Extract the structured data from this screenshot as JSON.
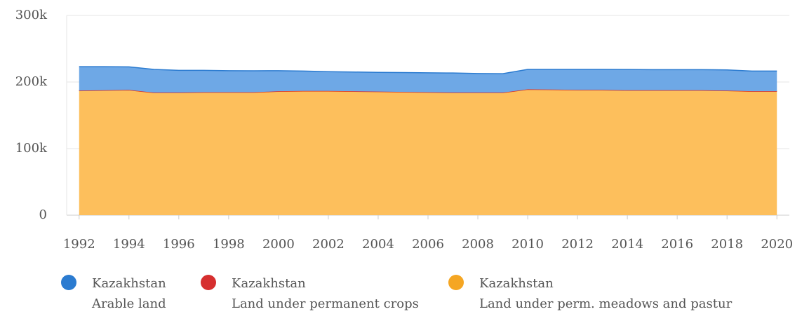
{
  "chart_data": {
    "type": "stacked_area",
    "x": [
      1992,
      1993,
      1994,
      1995,
      1996,
      1997,
      1998,
      1999,
      2000,
      2001,
      2002,
      2003,
      2004,
      2005,
      2006,
      2007,
      2008,
      2009,
      2010,
      2011,
      2012,
      2013,
      2014,
      2015,
      2016,
      2017,
      2018,
      2019,
      2020
    ],
    "xlim": [
      1991.5,
      2020.5
    ],
    "xticks": [
      1992,
      1994,
      1996,
      1998,
      2000,
      2002,
      2004,
      2006,
      2008,
      2010,
      2012,
      2014,
      2016,
      2018,
      2020
    ],
    "ylim": [
      0,
      300000
    ],
    "yticks": [
      0,
      {
        "value": 100000,
        "label": "100k"
      },
      {
        "value": 200000,
        "label": "200k"
      },
      {
        "value": 300000,
        "label": "300k"
      }
    ],
    "grid": true,
    "legend": "bottom",
    "series": [
      {
        "name": "Kazakhstan",
        "element": "Arable land",
        "color": "#2b7bd0",
        "fill": "#6ea8e6",
        "values": [
          35880,
          35380,
          34680,
          34880,
          33380,
          32880,
          32380,
          32180,
          30880,
          29880,
          28880,
          28880,
          28880,
          29080,
          29180,
          29380,
          28680,
          28380,
          29880,
          30380,
          30880,
          30880,
          31180,
          30880,
          30880,
          30880,
          31080,
          30380,
          30380
        ]
      },
      {
        "name": "Kazakhstan",
        "element": "Land under permanent crops",
        "color": "#d62f2f",
        "fill": "#e06060",
        "values": [
          120,
          120,
          120,
          120,
          120,
          120,
          120,
          120,
          120,
          120,
          120,
          120,
          120,
          120,
          120,
          120,
          120,
          120,
          120,
          120,
          120,
          120,
          120,
          120,
          120,
          120,
          120,
          120,
          120
        ]
      },
      {
        "name": "Kazakhstan",
        "element": "Land under perm. meadows and pastur",
        "color": "#f5a623",
        "fill": "#fdbf5c",
        "values": [
          187000,
          187500,
          188000,
          184000,
          184000,
          184500,
          184500,
          184500,
          186000,
          186500,
          186500,
          186000,
          185500,
          185000,
          184500,
          184000,
          184000,
          184000,
          189000,
          188500,
          188000,
          188000,
          187500,
          187500,
          187500,
          187500,
          187000,
          186000,
          186000
        ]
      }
    ]
  }
}
